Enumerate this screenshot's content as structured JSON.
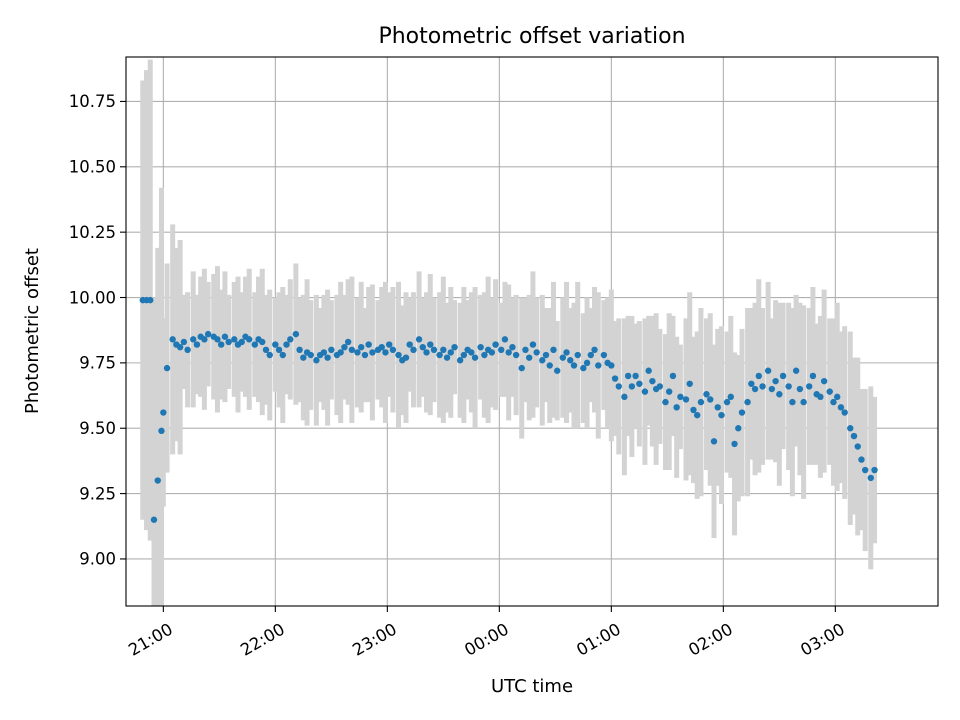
{
  "chart_data": {
    "type": "scatter",
    "title": "Photometric offset variation",
    "xlabel": "UTC time",
    "ylabel": "Photometric offset",
    "grid": true,
    "x_unit": "UTC time (HH:MM)",
    "x_ticks": [
      "21:00",
      "22:00",
      "23:00",
      "00:00",
      "01:00",
      "02:00",
      "03:00"
    ],
    "y_ticks": [
      "9.00",
      "9.25",
      "9.50",
      "9.75",
      "10.00",
      "10.25",
      "10.50",
      "10.75"
    ],
    "xlim": [
      "20:40",
      "03:55"
    ],
    "ylim": [
      8.82,
      10.92
    ],
    "colors": {
      "points": "#1f77b4",
      "error_bars": "#d3d3d3"
    },
    "series": [
      {
        "x": [
          "20:49",
          "20:51",
          "20:53",
          "20:55",
          "20:57",
          "20:59",
          "21:00",
          "21:02",
          "21:05",
          "21:07",
          "21:09",
          "21:11",
          "21:13",
          "21:16",
          "21:18",
          "21:20",
          "21:22",
          "21:24",
          "21:27",
          "21:29",
          "21:31",
          "21:33",
          "21:35",
          "21:38",
          "21:40",
          "21:42",
          "21:44",
          "21:46",
          "21:49",
          "21:51",
          "21:53",
          "21:55",
          "21:57",
          "22:00",
          "22:02",
          "22:04",
          "22:06",
          "22:08",
          "22:11",
          "22:13",
          "22:15",
          "22:17",
          "22:19",
          "22:22",
          "22:24",
          "22:26",
          "22:28",
          "22:30",
          "22:33",
          "22:35",
          "22:37",
          "22:39",
          "22:41",
          "22:44",
          "22:46",
          "22:48",
          "22:50",
          "22:52",
          "22:55",
          "22:57",
          "22:59",
          "23:01",
          "23:03",
          "23:06",
          "23:08",
          "23:10",
          "23:12",
          "23:14",
          "23:17",
          "23:19",
          "23:21",
          "23:23",
          "23:25",
          "23:28",
          "23:30",
          "23:32",
          "23:34",
          "23:36",
          "23:39",
          "23:41",
          "23:43",
          "23:45",
          "23:47",
          "23:50",
          "23:52",
          "23:54",
          "23:56",
          "23:58",
          "00:01",
          "00:03",
          "00:05",
          "00:07",
          "00:09",
          "00:12",
          "00:14",
          "00:16",
          "00:18",
          "00:20",
          "00:23",
          "00:25",
          "00:27",
          "00:29",
          "00:31",
          "00:34",
          "00:36",
          "00:38",
          "00:40",
          "00:42",
          "00:45",
          "00:47",
          "00:49",
          "00:51",
          "00:53",
          "00:56",
          "00:58",
          "01:00",
          "01:02",
          "01:04",
          "01:07",
          "01:09",
          "01:11",
          "01:13",
          "01:15",
          "01:18",
          "01:20",
          "01:22",
          "01:24",
          "01:26",
          "01:29",
          "01:31",
          "01:33",
          "01:35",
          "01:37",
          "01:40",
          "01:42",
          "01:44",
          "01:46",
          "01:48",
          "01:51",
          "01:53",
          "01:55",
          "01:57",
          "01:59",
          "02:02",
          "02:04",
          "02:06",
          "02:08",
          "02:10",
          "02:13",
          "02:15",
          "02:17",
          "02:19",
          "02:21",
          "02:24",
          "02:26",
          "02:28",
          "02:30",
          "02:32",
          "02:35",
          "02:37",
          "02:39",
          "02:41",
          "02:43",
          "02:46",
          "02:48",
          "02:50",
          "02:52",
          "02:54",
          "02:57",
          "02:59",
          "03:01",
          "03:03",
          "03:05",
          "03:08",
          "03:10",
          "03:12",
          "03:14",
          "03:16",
          "03:19",
          "03:21"
        ],
        "y": [
          9.99,
          9.99,
          9.99,
          9.15,
          9.3,
          9.49,
          9.56,
          9.73,
          9.84,
          9.82,
          9.81,
          9.83,
          9.8,
          9.84,
          9.82,
          9.85,
          9.84,
          9.86,
          9.85,
          9.84,
          9.82,
          9.85,
          9.83,
          9.84,
          9.82,
          9.83,
          9.85,
          9.84,
          9.82,
          9.84,
          9.83,
          9.8,
          9.78,
          9.82,
          9.8,
          9.78,
          9.82,
          9.84,
          9.86,
          9.8,
          9.77,
          9.79,
          9.78,
          9.76,
          9.78,
          9.79,
          9.77,
          9.8,
          9.78,
          9.79,
          9.81,
          9.83,
          9.8,
          9.79,
          9.81,
          9.78,
          9.82,
          9.79,
          9.8,
          9.81,
          9.79,
          9.82,
          9.8,
          9.78,
          9.76,
          9.77,
          9.82,
          9.8,
          9.84,
          9.81,
          9.79,
          9.82,
          9.8,
          9.78,
          9.8,
          9.77,
          9.79,
          9.81,
          9.76,
          9.78,
          9.8,
          9.79,
          9.77,
          9.81,
          9.78,
          9.8,
          9.79,
          9.82,
          9.8,
          9.84,
          9.79,
          9.81,
          9.78,
          9.73,
          9.8,
          9.77,
          9.82,
          9.79,
          9.76,
          9.78,
          9.74,
          9.8,
          9.72,
          9.77,
          9.79,
          9.76,
          9.74,
          9.78,
          9.73,
          9.75,
          9.78,
          9.8,
          9.74,
          9.78,
          9.75,
          9.74,
          9.69,
          9.66,
          9.62,
          9.7,
          9.66,
          9.7,
          9.67,
          9.64,
          9.72,
          9.68,
          9.65,
          9.66,
          9.6,
          9.64,
          9.7,
          9.58,
          9.62,
          9.61,
          9.67,
          9.57,
          9.55,
          9.6,
          9.63,
          9.61,
          9.45,
          9.58,
          9.55,
          9.6,
          9.62,
          9.44,
          9.5,
          9.56,
          9.6,
          9.67,
          9.65,
          9.7,
          9.66,
          9.72,
          9.65,
          9.68,
          9.63,
          9.7,
          9.66,
          9.6,
          9.72,
          9.65,
          9.6,
          9.66,
          9.7,
          9.63,
          9.62,
          9.68,
          9.64,
          9.6,
          9.62,
          9.58,
          9.56,
          9.5,
          9.47,
          9.43,
          9.38,
          9.34,
          9.31,
          9.34
        ]
      }
    ]
  }
}
